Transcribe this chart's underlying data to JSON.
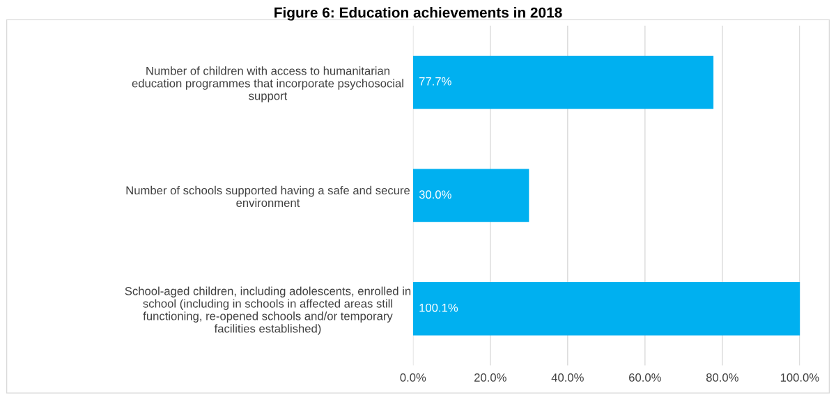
{
  "chart_data": {
    "type": "bar",
    "orientation": "horizontal",
    "title": "Figure 6: Education achievements in 2018",
    "categories": [
      "Number of children with access to humanitarian\neducation programmes that incorporate psychosocial\nsupport",
      "Number of schools supported having a safe and secure\nenvironment",
      "School-aged children, including adolescents, enrolled in\nschool (including in schools in affected areas still\nfunctioning, re-opened schools and/or temporary\nfacilities established)"
    ],
    "values": [
      77.7,
      30.0,
      100.1
    ],
    "color": "#00b0f0",
    "value_labels": [
      "77.7%",
      "30.0%",
      "100.1%"
    ],
    "xlim": [
      0,
      100.1
    ],
    "xticks": [
      {
        "value": 0,
        "label": "0.0%"
      },
      {
        "value": 20,
        "label": "20.0%"
      },
      {
        "value": 40,
        "label": "40.0%"
      },
      {
        "value": 60,
        "label": "60.0%"
      },
      {
        "value": 80,
        "label": "80.0%"
      },
      {
        "value": 100,
        "label": "100.0%"
      }
    ],
    "grid": "x",
    "legend": false
  }
}
